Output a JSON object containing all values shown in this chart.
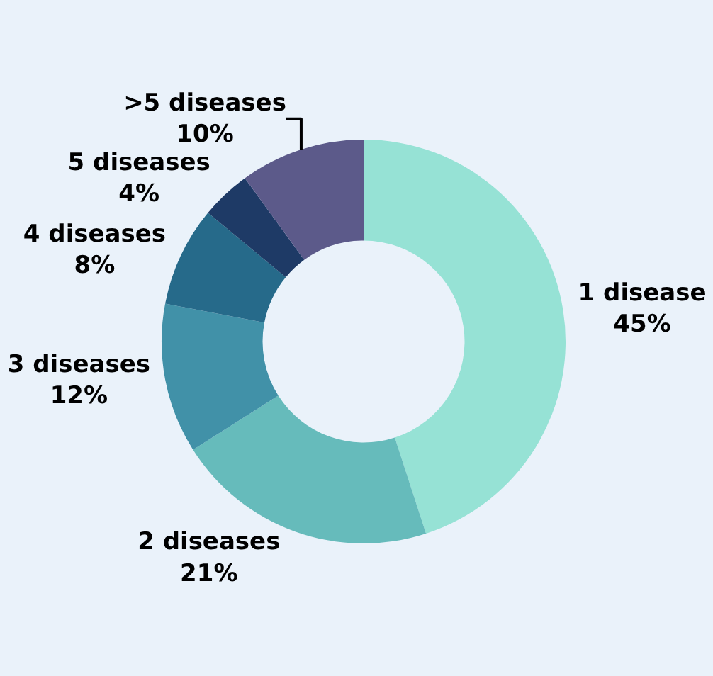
{
  "chart_data": {
    "type": "donut",
    "categories": [
      "1 disease",
      "2 diseases",
      "3 diseases",
      "4 diseases",
      "5 diseases",
      ">5 diseases"
    ],
    "values": [
      45,
      21,
      12,
      8,
      4,
      10
    ],
    "value_labels": [
      "45%",
      "21%",
      "12%",
      "8%",
      "4%",
      "10%"
    ],
    "colors": [
      "#96e2d5",
      "#66bbbb",
      "#4191a8",
      "#266a8a",
      "#1e3a66",
      "#5c5a8a"
    ],
    "legend": false
  }
}
